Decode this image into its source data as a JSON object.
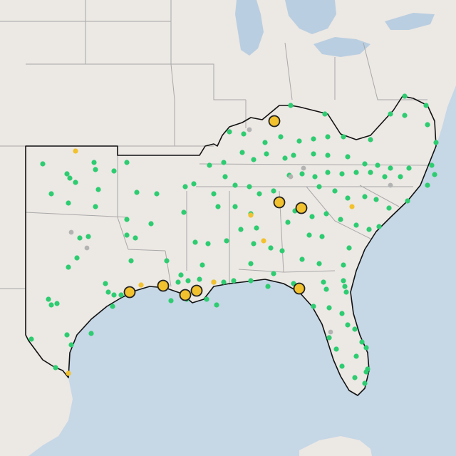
{
  "map": {
    "colors": {
      "land": "#ece8e4",
      "water": "#c6d7e6",
      "lake": "#b9cee0",
      "state_border": "#a9a9a9",
      "region_outline": "#111111",
      "green_marker": "#2ecc71",
      "yellow_marker": "#f2c12e",
      "gray_marker": "#b3b3b3",
      "large_marker_stroke": "#222222"
    },
    "marker_legend": [
      {
        "name": "green-site-marker",
        "color": "#2ecc71"
      },
      {
        "name": "yellow-site-marker",
        "color": "#f2c12e"
      },
      {
        "name": "gray-site-marker",
        "color": "#b3b3b3"
      },
      {
        "name": "large-yellow-site-marker",
        "color": "#f2c12e"
      }
    ]
  }
}
